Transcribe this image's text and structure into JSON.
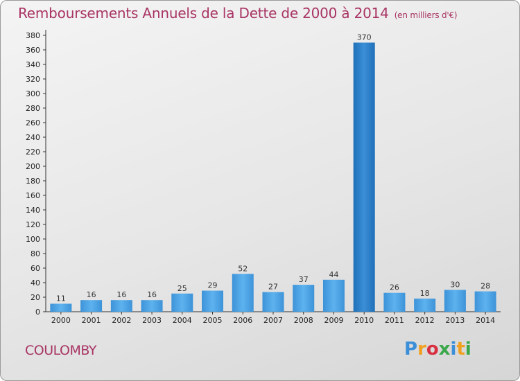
{
  "header": {
    "title": "Remboursements Annuels de la Dette de 2000 à 2014",
    "unit": "(en milliers d'€)"
  },
  "commune": "COULOMBY",
  "logo": {
    "letters": [
      "P",
      "r",
      "o",
      "x",
      "i",
      "t",
      "i"
    ],
    "colors": [
      "#3a8fd8",
      "#f0a020",
      "#d83040",
      "#3aa84a",
      "#3a8fd8",
      "#f0a020",
      "#3aa84a"
    ]
  },
  "chart_data": {
    "type": "bar",
    "categories": [
      "2000",
      "2001",
      "2002",
      "2003",
      "2004",
      "2005",
      "2006",
      "2007",
      "2008",
      "2009",
      "2010",
      "2011",
      "2012",
      "2013",
      "2014"
    ],
    "values": [
      11,
      16,
      16,
      16,
      25,
      29,
      52,
      27,
      37,
      44,
      370,
      26,
      18,
      30,
      28
    ],
    "ylim": [
      0,
      380
    ],
    "yticks": [
      0,
      20,
      40,
      60,
      80,
      100,
      120,
      140,
      160,
      180,
      200,
      220,
      240,
      260,
      280,
      300,
      320,
      340,
      360,
      380
    ],
    "grid": false,
    "highlight_color": "#2a7fc8",
    "bar_color": "#4aa3e6"
  }
}
